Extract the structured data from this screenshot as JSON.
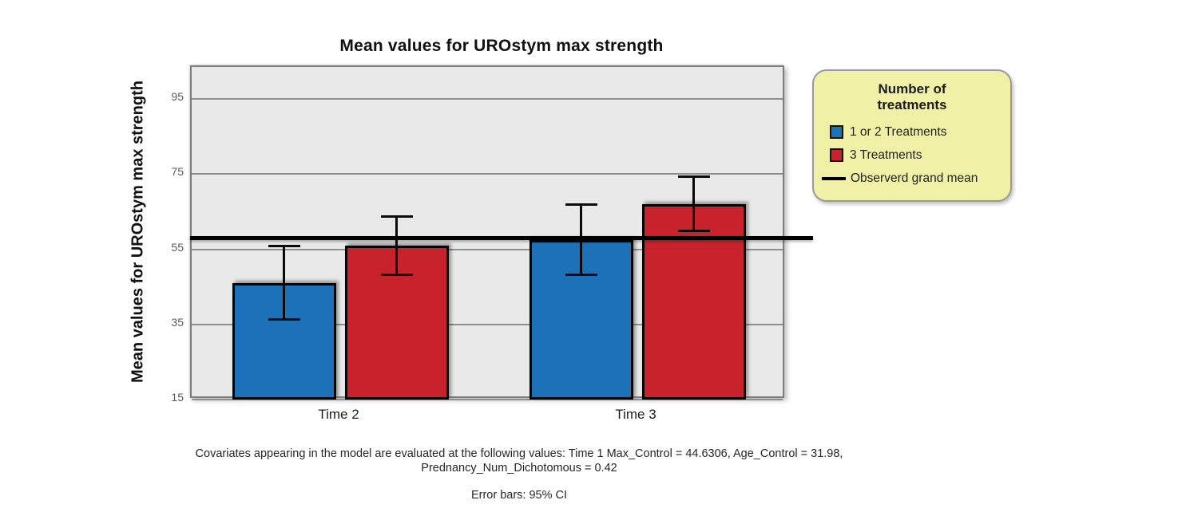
{
  "title": "Mean values for UROstym max strength",
  "y_axis_label": "Mean values for UROstym max strength",
  "legend": {
    "title_lines": [
      "Number of",
      "treatments"
    ],
    "items": [
      {
        "label": "1 or 2 Treatments",
        "color": "#1c71b8"
      },
      {
        "label": "3 Treatments",
        "color": "#c8232c"
      }
    ],
    "grand_mean_label": "Observerd grand mean",
    "background": "#f0f0a6"
  },
  "footnotes": {
    "covariates_line1": "Covariates appearing in the model are evaluated at the following values: Time 1 Max_Control = 44.6306, Age_Control = 31.98,",
    "covariates_line2": "Prednancy_Num_Dichotomous = 0.42",
    "error_bars": "Error bars: 95% CI"
  },
  "chart_data": {
    "type": "bar",
    "title": "Mean values for UROstym max strength",
    "categories": [
      "Time 2",
      "Time 3"
    ],
    "series": [
      {
        "name": "1 or 2 Treatments",
        "color": "#1c71b8",
        "values": [
          46,
          57.5
        ],
        "ci95_low": [
          36.4,
          48.2
        ],
        "ci95_high": [
          55.8,
          66.8
        ]
      },
      {
        "name": "3 Treatments",
        "color": "#c8232c",
        "values": [
          56,
          67
        ],
        "ci95_low": [
          48.3,
          59.8
        ],
        "ci95_high": [
          63.8,
          74.3
        ]
      }
    ],
    "grand_mean": 57.6,
    "grand_mean_label": "Observerd grand mean",
    "xlabel": "",
    "ylabel": "Mean values for UROstym max strength",
    "yticks": [
      15,
      35,
      55,
      75,
      95
    ],
    "ylim": [
      15,
      103.5
    ],
    "grid": true,
    "legend_position": "right",
    "error_bars_note": "Error bars: 95% CI",
    "plot_background": "#e9e9e9",
    "gridline_color": "#8f8f8f",
    "accent_colors": {
      "blue": "#1c71b8",
      "red": "#c8232c",
      "grand_mean": "#000000"
    }
  }
}
